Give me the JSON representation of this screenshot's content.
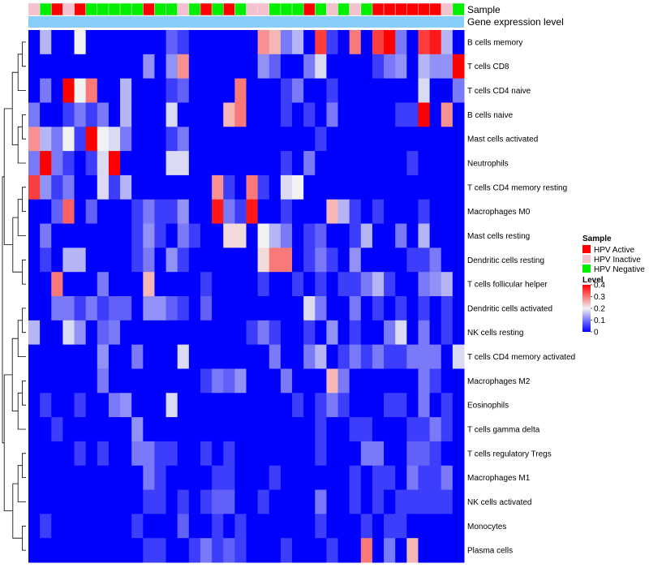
{
  "chart_data": {
    "type": "heatmap",
    "colors": {
      "low": "#0000ff",
      "mid": "#f2f2f2",
      "high": "#ff0000",
      "grid": "#e6e6e6"
    },
    "annotations": [
      {
        "name": "Sample",
        "values": [
          "HPV Inactive",
          "HPV Negative",
          "HPV Active",
          "HPV Inactive",
          "HPV Active",
          "HPV Negative",
          "HPV Negative",
          "HPV Negative",
          "HPV Negative",
          "HPV Negative",
          "HPV Active",
          "HPV Negative",
          "HPV Negative",
          "HPV Inactive",
          "HPV Negative",
          "HPV Active",
          "HPV Negative",
          "HPV Active",
          "HPV Negative",
          "HPV Inactive",
          "HPV Inactive",
          "HPV Negative",
          "HPV Negative",
          "HPV Negative",
          "HPV Active",
          "HPV Negative",
          "HPV Inactive",
          "HPV Negative",
          "HPV Inactive",
          "HPV Negative",
          "HPV Active",
          "HPV Active",
          "HPV Active",
          "HPV Active",
          "HPV Active",
          "HPV Active",
          "HPV Inactive",
          "HPV Negative"
        ]
      },
      {
        "name": "Gene expression level",
        "color": "#87cefa"
      }
    ],
    "rows": [
      "B cells memory",
      "T cells CD8",
      "T cells CD4 naive",
      "B cells naive",
      "Mast cells activated",
      "Neutrophils",
      "T cells CD4 memory resting",
      "Macrophages M0",
      "Mast cells resting",
      "Dendritic cells resting",
      "T cells follicular helper",
      "Dendritic cells activated",
      "NK cells resting",
      "T cells CD4 memory activated",
      "Macrophages M2",
      "Eosinophils",
      "T cells gamma delta",
      "T cells regulatory  Tregs",
      "Macrophages M1",
      "NK cells activated",
      "Monocytes",
      "Plasma cells"
    ],
    "values": [
      [
        0.0,
        0.15,
        0.0,
        0.0,
        0.2,
        0.0,
        0.0,
        0.0,
        0.0,
        0.0,
        0.0,
        0.0,
        0.08,
        0.05,
        0.0,
        0.0,
        0.0,
        0.0,
        0.0,
        0.0,
        0.28,
        0.25,
        0.1,
        0.15,
        0.0,
        0.35,
        0.05,
        0.0,
        0.3,
        0.0,
        0.35,
        0.4,
        0.1,
        0.0,
        0.35,
        0.38,
        0.15,
        0.0
      ],
      [
        0.0,
        0.0,
        0.0,
        0.0,
        0.0,
        0.0,
        0.0,
        0.0,
        0.0,
        0.0,
        0.12,
        0.0,
        0.12,
        0.28,
        0.0,
        0.0,
        0.0,
        0.0,
        0.0,
        0.0,
        0.12,
        0.08,
        0.0,
        0.0,
        0.1,
        0.18,
        0.0,
        0.0,
        0.0,
        0.0,
        0.05,
        0.1,
        0.12,
        0.0,
        0.15,
        0.12,
        0.12,
        0.4
      ],
      [
        0.0,
        0.1,
        0.0,
        0.4,
        0.2,
        0.3,
        0.0,
        0.0,
        0.15,
        0.0,
        0.0,
        0.0,
        0.05,
        0.08,
        0.0,
        0.0,
        0.0,
        0.0,
        0.3,
        0.0,
        0.0,
        0.0,
        0.05,
        0.1,
        0.0,
        0.0,
        0.05,
        0.0,
        0.0,
        0.0,
        0.0,
        0.0,
        0.0,
        0.0,
        0.18,
        0.0,
        0.0,
        0.1
      ],
      [
        0.1,
        0.0,
        0.0,
        0.05,
        0.1,
        0.05,
        0.1,
        0.0,
        0.15,
        0.0,
        0.0,
        0.0,
        0.18,
        0.0,
        0.0,
        0.0,
        0.0,
        0.25,
        0.3,
        0.0,
        0.0,
        0.0,
        0.05,
        0.0,
        0.05,
        0.0,
        0.1,
        0.0,
        0.0,
        0.0,
        0.0,
        0.0,
        0.05,
        0.05,
        0.4,
        0.0,
        0.28,
        0.0
      ],
      [
        0.28,
        0.15,
        0.1,
        0.2,
        0.05,
        0.4,
        0.2,
        0.18,
        0.1,
        0.0,
        0.0,
        0.0,
        0.05,
        0.1,
        0.0,
        0.0,
        0.0,
        0.0,
        0.0,
        0.0,
        0.0,
        0.0,
        0.0,
        0.0,
        0.0,
        0.05,
        0.0,
        0.0,
        0.0,
        0.0,
        0.0,
        0.0,
        0.0,
        0.0,
        0.0,
        0.0,
        0.0,
        0.0
      ],
      [
        0.1,
        0.4,
        0.1,
        0.05,
        0.0,
        0.05,
        0.18,
        0.4,
        0.0,
        0.0,
        0.0,
        0.0,
        0.18,
        0.18,
        0.0,
        0.0,
        0.0,
        0.0,
        0.0,
        0.0,
        0.0,
        0.0,
        0.05,
        0.0,
        0.1,
        0.0,
        0.0,
        0.0,
        0.0,
        0.0,
        0.0,
        0.0,
        0.0,
        0.05,
        0.0,
        0.0,
        0.0,
        0.0
      ],
      [
        0.35,
        0.12,
        0.05,
        0.1,
        0.0,
        0.0,
        0.18,
        0.05,
        0.15,
        0.0,
        0.0,
        0.0,
        0.0,
        0.0,
        0.0,
        0.0,
        0.28,
        0.05,
        0.0,
        0.3,
        0.05,
        0.0,
        0.18,
        0.2,
        0.0,
        0.0,
        0.0,
        0.0,
        0.0,
        0.0,
        0.0,
        0.0,
        0.0,
        0.0,
        0.0,
        0.0,
        0.0,
        0.0
      ],
      [
        0.0,
        0.0,
        0.08,
        0.32,
        0.0,
        0.08,
        0.0,
        0.0,
        0.0,
        0.05,
        0.1,
        0.05,
        0.05,
        0.12,
        0.0,
        0.0,
        0.38,
        0.1,
        0.05,
        0.38,
        0.0,
        0.0,
        0.05,
        0.0,
        0.0,
        0.0,
        0.25,
        0.15,
        0.05,
        0.0,
        0.05,
        0.0,
        0.0,
        0.0,
        0.05,
        0.0,
        0.0,
        0.0
      ],
      [
        0.0,
        0.1,
        0.0,
        0.0,
        0.0,
        0.0,
        0.0,
        0.0,
        0.0,
        0.05,
        0.12,
        0.05,
        0.0,
        0.1,
        0.05,
        0.0,
        0.0,
        0.22,
        0.22,
        0.0,
        0.2,
        0.15,
        0.1,
        0.0,
        0.05,
        0.08,
        0.0,
        0.0,
        0.05,
        0.15,
        0.0,
        0.0,
        0.1,
        0.0,
        0.15,
        0.0,
        0.0,
        0.0
      ],
      [
        0.0,
        0.05,
        0.0,
        0.15,
        0.15,
        0.0,
        0.0,
        0.0,
        0.0,
        0.05,
        0.1,
        0.0,
        0.12,
        0.05,
        0.0,
        0.0,
        0.0,
        0.0,
        0.0,
        0.0,
        0.22,
        0.3,
        0.3,
        0.0,
        0.05,
        0.1,
        0.05,
        0.0,
        0.12,
        0.0,
        0.0,
        0.0,
        0.0,
        0.05,
        0.05,
        0.1,
        0.0,
        0.0
      ],
      [
        0.0,
        0.0,
        0.3,
        0.0,
        0.0,
        0.0,
        0.1,
        0.0,
        0.0,
        0.0,
        0.25,
        0.0,
        0.0,
        0.0,
        0.0,
        0.05,
        0.0,
        0.0,
        0.0,
        0.0,
        0.05,
        0.0,
        0.0,
        0.05,
        0.0,
        0.05,
        0.0,
        0.05,
        0.05,
        0.1,
        0.15,
        0.05,
        0.0,
        0.0,
        0.1,
        0.12,
        0.15,
        0.0
      ],
      [
        0.0,
        0.0,
        0.1,
        0.1,
        0.05,
        0.1,
        0.05,
        0.08,
        0.08,
        0.0,
        0.12,
        0.12,
        0.08,
        0.05,
        0.0,
        0.08,
        0.0,
        0.0,
        0.0,
        0.0,
        0.0,
        0.0,
        0.0,
        0.0,
        0.18,
        0.1,
        0.0,
        0.0,
        0.1,
        0.0,
        0.05,
        0.0,
        0.05,
        0.0,
        0.05,
        0.0,
        0.05,
        0.0
      ],
      [
        0.15,
        0.0,
        0.0,
        0.18,
        0.12,
        0.0,
        0.08,
        0.1,
        0.0,
        0.0,
        0.0,
        0.0,
        0.0,
        0.0,
        0.0,
        0.0,
        0.0,
        0.0,
        0.0,
        0.05,
        0.1,
        0.05,
        0.0,
        0.0,
        0.05,
        0.0,
        0.12,
        0.0,
        0.05,
        0.0,
        0.0,
        0.1,
        0.18,
        0.0,
        0.1,
        0.0,
        0.05,
        0.0
      ],
      [
        0.0,
        0.0,
        0.0,
        0.0,
        0.0,
        0.0,
        0.12,
        0.0,
        0.0,
        0.1,
        0.0,
        0.0,
        0.0,
        0.18,
        0.0,
        0.0,
        0.0,
        0.0,
        0.0,
        0.0,
        0.0,
        0.1,
        0.0,
        0.0,
        0.1,
        0.15,
        0.0,
        0.05,
        0.1,
        0.05,
        0.1,
        0.05,
        0.05,
        0.1,
        0.1,
        0.1,
        0.0,
        0.18
      ],
      [
        0.0,
        0.0,
        0.0,
        0.0,
        0.0,
        0.0,
        0.1,
        0.0,
        0.0,
        0.0,
        0.0,
        0.0,
        0.0,
        0.0,
        0.0,
        0.05,
        0.1,
        0.08,
        0.12,
        0.0,
        0.0,
        0.0,
        0.1,
        0.0,
        0.0,
        0.0,
        0.25,
        0.1,
        0.0,
        0.0,
        0.0,
        0.0,
        0.0,
        0.0,
        0.1,
        0.05,
        0.0,
        0.0
      ],
      [
        0.0,
        0.05,
        0.0,
        0.0,
        0.05,
        0.0,
        0.0,
        0.1,
        0.12,
        0.0,
        0.0,
        0.0,
        0.18,
        0.0,
        0.0,
        0.0,
        0.0,
        0.0,
        0.0,
        0.0,
        0.0,
        0.0,
        0.0,
        0.05,
        0.0,
        0.05,
        0.1,
        0.05,
        0.0,
        0.0,
        0.0,
        0.05,
        0.05,
        0.0,
        0.1,
        0.0,
        0.05,
        0.0
      ],
      [
        0.0,
        0.0,
        0.05,
        0.0,
        0.0,
        0.0,
        0.0,
        0.0,
        0.0,
        0.12,
        0.0,
        0.0,
        0.0,
        0.0,
        0.0,
        0.0,
        0.0,
        0.0,
        0.0,
        0.0,
        0.0,
        0.0,
        0.0,
        0.0,
        0.0,
        0.05,
        0.0,
        0.0,
        0.05,
        0.05,
        0.0,
        0.0,
        0.0,
        0.05,
        0.05,
        0.1,
        0.05,
        0.0
      ],
      [
        0.0,
        0.0,
        0.0,
        0.0,
        0.05,
        0.0,
        0.05,
        0.0,
        0.0,
        0.1,
        0.1,
        0.05,
        0.05,
        0.0,
        0.0,
        0.05,
        0.0,
        0.05,
        0.0,
        0.0,
        0.0,
        0.0,
        0.0,
        0.0,
        0.0,
        0.05,
        0.0,
        0.0,
        0.0,
        0.1,
        0.1,
        0.0,
        0.0,
        0.08,
        0.08,
        0.05,
        0.0,
        0.0
      ],
      [
        0.0,
        0.0,
        0.0,
        0.0,
        0.0,
        0.0,
        0.0,
        0.0,
        0.0,
        0.0,
        0.1,
        0.05,
        0.0,
        0.0,
        0.0,
        0.0,
        0.05,
        0.05,
        0.0,
        0.0,
        0.0,
        0.05,
        0.0,
        0.0,
        0.0,
        0.0,
        0.0,
        0.0,
        0.05,
        0.0,
        0.05,
        0.05,
        0.0,
        0.1,
        0.05,
        0.05,
        0.1,
        0.0
      ],
      [
        0.0,
        0.0,
        0.0,
        0.0,
        0.0,
        0.0,
        0.0,
        0.0,
        0.0,
        0.0,
        0.05,
        0.05,
        0.0,
        0.05,
        0.0,
        0.05,
        0.08,
        0.08,
        0.0,
        0.0,
        0.05,
        0.0,
        0.0,
        0.0,
        0.0,
        0.1,
        0.0,
        0.0,
        0.05,
        0.0,
        0.05,
        0.0,
        0.05,
        0.05,
        0.05,
        0.05,
        0.05,
        0.0
      ],
      [
        0.0,
        0.05,
        0.0,
        0.0,
        0.0,
        0.0,
        0.0,
        0.0,
        0.0,
        0.05,
        0.0,
        0.0,
        0.0,
        0.08,
        0.0,
        0.0,
        0.05,
        0.0,
        0.05,
        0.0,
        0.0,
        0.0,
        0.0,
        0.0,
        0.0,
        0.05,
        0.0,
        0.0,
        0.0,
        0.05,
        0.0,
        0.05,
        0.05,
        0.0,
        0.0,
        0.0,
        0.0,
        0.0
      ],
      [
        0.0,
        0.0,
        0.0,
        0.0,
        0.0,
        0.0,
        0.0,
        0.0,
        0.0,
        0.0,
        0.05,
        0.05,
        0.0,
        0.0,
        0.05,
        0.1,
        0.05,
        0.08,
        0.05,
        0.0,
        0.0,
        0.0,
        0.05,
        0.0,
        0.0,
        0.0,
        0.05,
        0.0,
        0.0,
        0.3,
        0.0,
        0.1,
        0.0,
        0.25,
        0.0,
        0.0,
        0.0,
        0.0
      ]
    ],
    "value_range": [
      0,
      0.4
    ],
    "legend": {
      "sample_title": "Sample",
      "sample_entries": [
        {
          "label": "HPV Active",
          "color": "#ff0000"
        },
        {
          "label": "HPV Inactive",
          "color": "#f4c2cf"
        },
        {
          "label": "HPV Negative",
          "color": "#00ee00"
        }
      ],
      "level_title": "Level",
      "level_ticks": [
        "0.4",
        "0.3",
        "0.2",
        "0.1",
        "0"
      ],
      "level_tick_values": [
        0.4,
        0.3,
        0.2,
        0.1,
        0
      ]
    }
  }
}
